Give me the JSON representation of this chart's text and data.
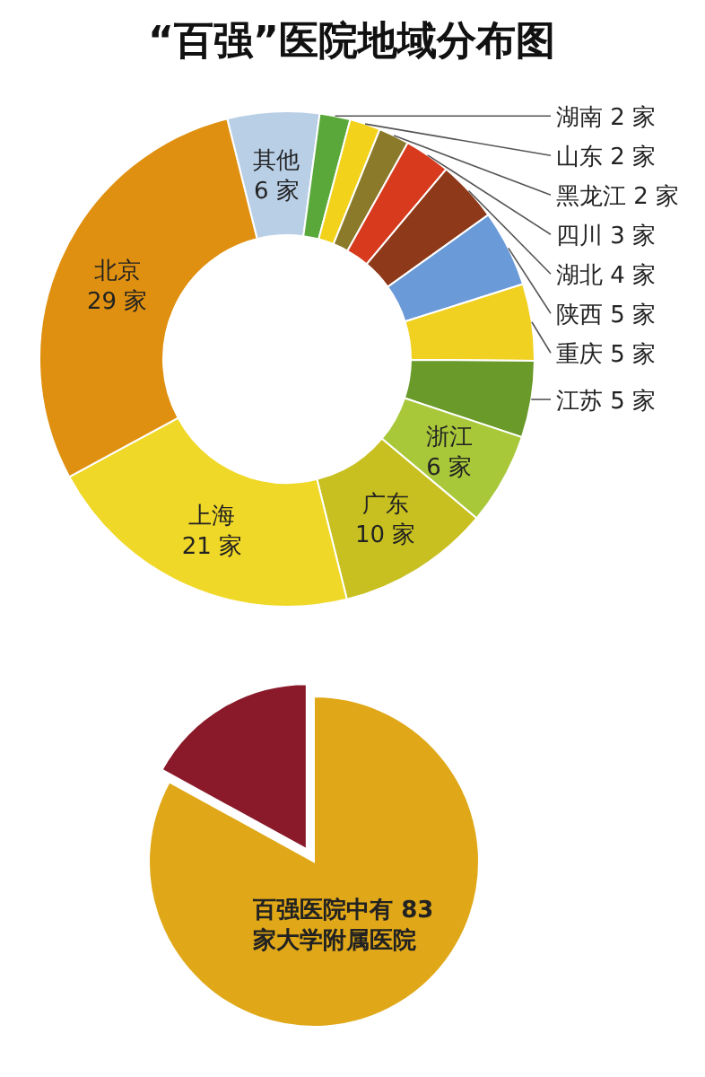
{
  "chart_data": [
    {
      "type": "donut",
      "title": "“百强”医院地域分布图",
      "categories": [
        "其他",
        "湖南",
        "山东",
        "黑龙江",
        "四川",
        "湖北",
        "陕西",
        "重庆",
        "江苏",
        "浙江",
        "广东",
        "上海",
        "北京"
      ],
      "values": [
        6,
        2,
        2,
        2,
        3,
        4,
        5,
        5,
        5,
        6,
        10,
        21,
        29
      ],
      "value_labels": [
        "6 家",
        "2 家",
        "2 家",
        "2 家",
        "3 家",
        "4 家",
        "5 家",
        "5 家",
        "5 家",
        "6 家",
        "10 家",
        "21 家",
        "29 家"
      ],
      "colors": [
        "#b9cfe6",
        "#5aa83a",
        "#f2d21a",
        "#8a7a2a",
        "#d83a1e",
        "#8e3a1a",
        "#6a9ad8",
        "#f0d020",
        "#6a9a2a",
        "#a8c83a",
        "#c8c020",
        "#f0d828",
        "#e09010"
      ]
    },
    {
      "type": "pie",
      "categories": [
        "百强医院中有 83 家大学附属医院",
        null
      ],
      "values": [
        83,
        17
      ],
      "colors": [
        "#e0a818",
        "#8a1a2a"
      ]
    }
  ]
}
